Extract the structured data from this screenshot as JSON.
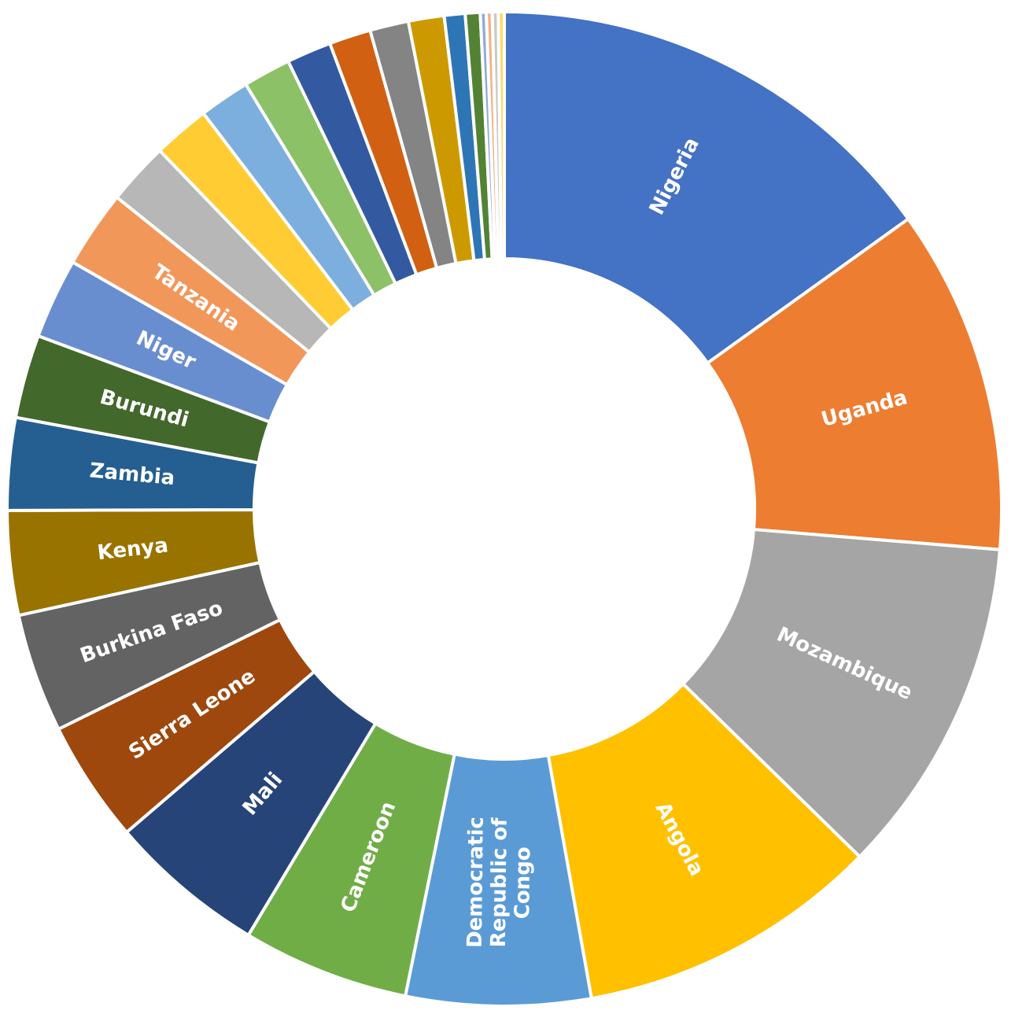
{
  "chart_data": {
    "type": "pie",
    "variant": "donut",
    "title": "",
    "start": "top, clockwise",
    "legend": "none",
    "slices": [
      {
        "label": "Nigeria",
        "value": 15.6,
        "color": "#4472C4",
        "shown": true
      },
      {
        "label": "Uganda",
        "value": 11.6,
        "color": "#ED7D31",
        "shown": true
      },
      {
        "label": "Mozambique",
        "value": 11.4,
        "color": "#A5A5A5",
        "shown": true
      },
      {
        "label": "Angola",
        "value": 10.2,
        "color": "#FFC000",
        "shown": true
      },
      {
        "label": "Democratic Republic of Congo",
        "value": 6.2,
        "color": "#5B9BD5",
        "shown": true
      },
      {
        "label": "Cameroon",
        "value": 5.6,
        "color": "#70AD47",
        "shown": true
      },
      {
        "label": "Mali",
        "value": 5.3,
        "color": "#264478",
        "shown": true
      },
      {
        "label": "Sierra Leone",
        "value": 4.1,
        "color": "#9E480E",
        "shown": true
      },
      {
        "label": "Burkina Faso",
        "value": 4.0,
        "color": "#636363",
        "shown": true
      },
      {
        "label": "Kenya",
        "value": 3.5,
        "color": "#997300",
        "shown": true
      },
      {
        "label": "Zambia",
        "value": 3.1,
        "color": "#255E91",
        "shown": true
      },
      {
        "label": "Burundi",
        "value": 2.8,
        "color": "#43682B",
        "shown": true
      },
      {
        "label": "Niger",
        "value": 2.7,
        "color": "#698ED0",
        "shown": true
      },
      {
        "label": "Tanzania",
        "value": 2.6,
        "color": "#F1975A",
        "shown": true
      },
      {
        "label": "",
        "value": 2.1,
        "color": "#B7B7B7",
        "shown": false
      },
      {
        "label": "",
        "value": 1.9,
        "color": "#FFCD33",
        "shown": false
      },
      {
        "label": "",
        "value": 1.7,
        "color": "#7CAFDD",
        "shown": false
      },
      {
        "label": "",
        "value": 1.6,
        "color": "#8CC168",
        "shown": false
      },
      {
        "label": "",
        "value": 1.5,
        "color": "#335AA1",
        "shown": false
      },
      {
        "label": "",
        "value": 1.4,
        "color": "#D26012",
        "shown": false
      },
      {
        "label": "",
        "value": 1.3,
        "color": "#848484",
        "shown": false
      },
      {
        "label": "",
        "value": 1.2,
        "color": "#CC9A00",
        "shown": false
      },
      {
        "label": "",
        "value": 0.7,
        "color": "#2E75B6",
        "shown": false
      },
      {
        "label": "",
        "value": 0.5,
        "color": "#548235",
        "shown": false
      },
      {
        "label": "",
        "value": 0.2,
        "color": "#8FAADC",
        "shown": false
      },
      {
        "label": "",
        "value": 0.2,
        "color": "#F4B183",
        "shown": false
      },
      {
        "label": "",
        "value": 0.2,
        "color": "#C9C9C9",
        "shown": false
      },
      {
        "label": "",
        "value": 0.2,
        "color": "#FFD966",
        "shown": false
      }
    ]
  }
}
